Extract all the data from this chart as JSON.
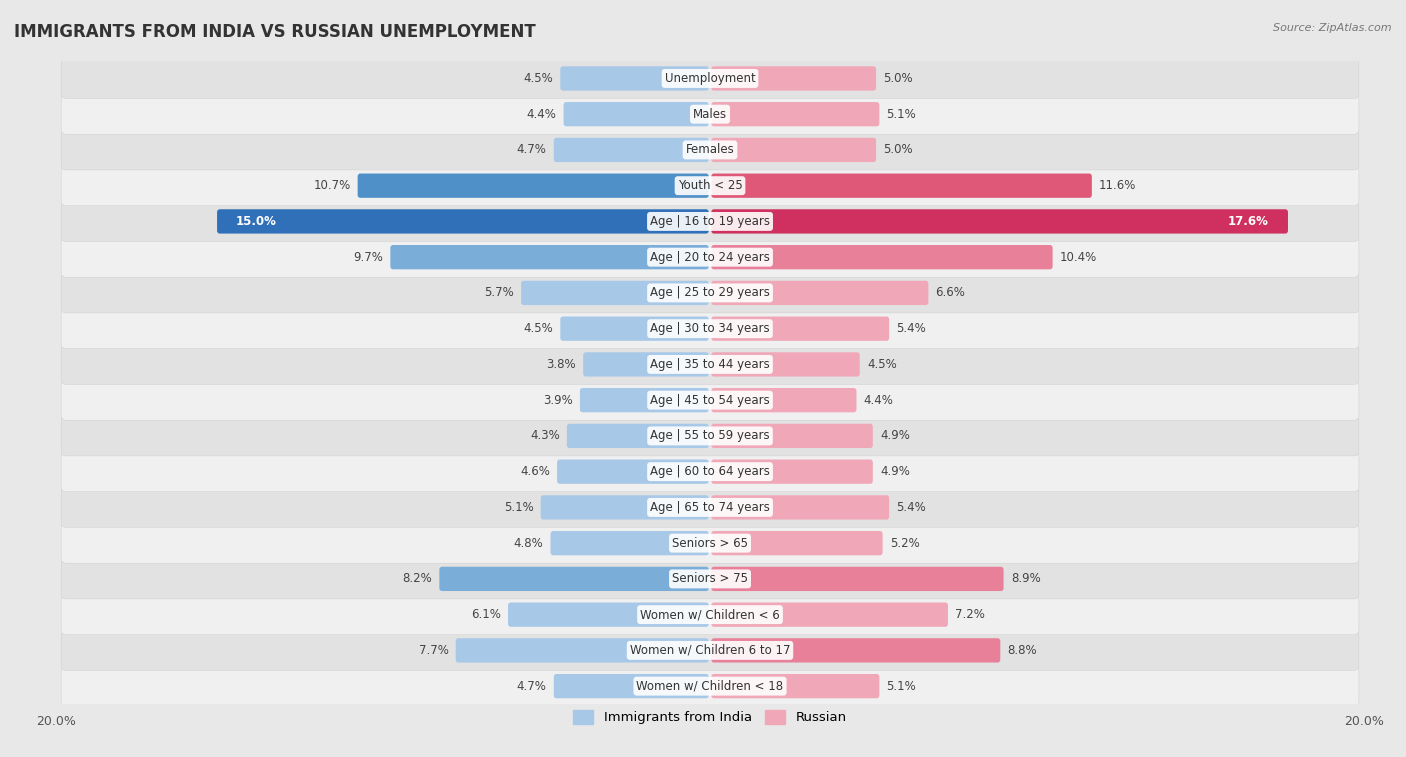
{
  "title": "IMMIGRANTS FROM INDIA VS RUSSIAN UNEMPLOYMENT",
  "source": "Source: ZipAtlas.com",
  "categories": [
    "Unemployment",
    "Males",
    "Females",
    "Youth < 25",
    "Age | 16 to 19 years",
    "Age | 20 to 24 years",
    "Age | 25 to 29 years",
    "Age | 30 to 34 years",
    "Age | 35 to 44 years",
    "Age | 45 to 54 years",
    "Age | 55 to 59 years",
    "Age | 60 to 64 years",
    "Age | 65 to 74 years",
    "Seniors > 65",
    "Seniors > 75",
    "Women w/ Children < 6",
    "Women w/ Children 6 to 17",
    "Women w/ Children < 18"
  ],
  "india_values": [
    4.5,
    4.4,
    4.7,
    10.7,
    15.0,
    9.7,
    5.7,
    4.5,
    3.8,
    3.9,
    4.3,
    4.6,
    5.1,
    4.8,
    8.2,
    6.1,
    7.7,
    4.7
  ],
  "russian_values": [
    5.0,
    5.1,
    5.0,
    11.6,
    17.6,
    10.4,
    6.6,
    5.4,
    4.5,
    4.4,
    4.9,
    4.9,
    5.4,
    5.2,
    8.9,
    7.2,
    8.8,
    5.1
  ],
  "india_color_normal": "#a8c8e8",
  "india_color_medium": "#7aaed8",
  "india_color_strong": "#5090c8",
  "india_color_max": "#3070b8",
  "russian_color_normal": "#f0a8b8",
  "russian_color_medium": "#e8809a",
  "russian_color_strong": "#e05878",
  "russian_color_max": "#d03060",
  "row_bg_light": "#f5f5f5",
  "row_bg_dark": "#e8e8e8",
  "background_color": "#e8e8e8",
  "xlim": 20.0,
  "label_fontsize": 8.5,
  "title_fontsize": 12,
  "legend_india": "Immigrants from India",
  "legend_russian": "Russian"
}
